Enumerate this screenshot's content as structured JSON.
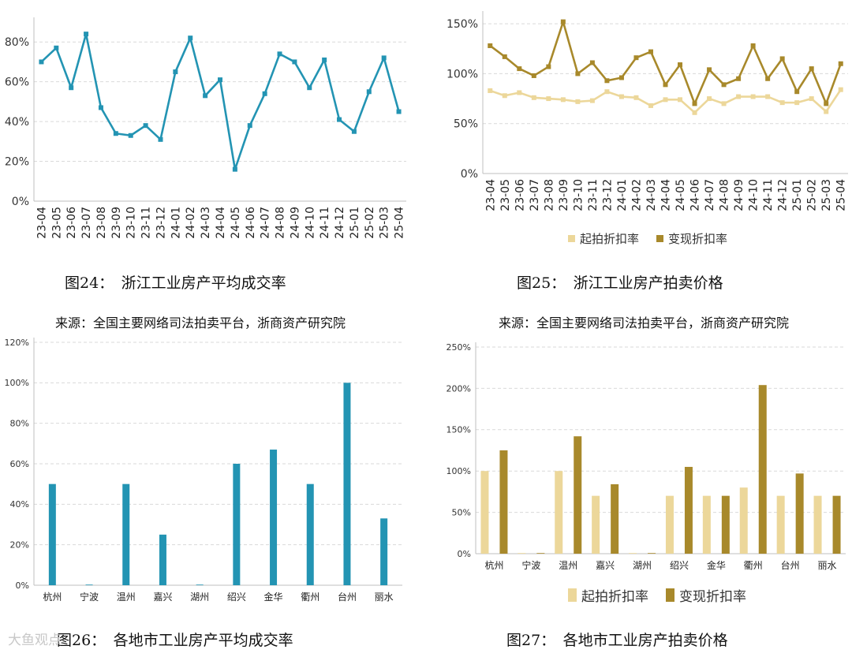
{
  "colors": {
    "teal": "#2394b3",
    "light_gold": "#ecd79a",
    "dark_gold": "#a8892b",
    "grid": "#d9d9d9"
  },
  "captions": {
    "fig24": "图24：　浙江工业房产平均成交率",
    "fig25": "图25：　浙江工业房产拍卖价格",
    "fig26": "图26：　各地市工业房产平均成交率",
    "fig27": "图27：　各地市工业房产拍卖价格",
    "source_left": "来源：全国主要网络司法拍卖平台，浙商资产研究院",
    "source_right": "来源：全国主要网络司法拍卖平台，浙商资产研究院"
  },
  "watermark": "大鱼观点",
  "chart_data": [
    {
      "id": "fig24",
      "type": "line",
      "categories": [
        "23-04",
        "23-05",
        "23-06",
        "23-07",
        "23-08",
        "23-09",
        "23-10",
        "23-11",
        "23-12",
        "24-01",
        "24-02",
        "24-03",
        "24-04",
        "24-05",
        "24-06",
        "24-07",
        "24-08",
        "24-09",
        "24-10",
        "24-11",
        "24-12",
        "25-01",
        "25-02",
        "25-03",
        "25-04"
      ],
      "series": [
        {
          "values": [
            70,
            77,
            57,
            84,
            47,
            34,
            33,
            38,
            31,
            65,
            82,
            53,
            61,
            16,
            38,
            54,
            74,
            70,
            57,
            71,
            41,
            35,
            55,
            72,
            45
          ],
          "color": "#2394b3"
        }
      ],
      "yticks": [
        "0%",
        "20%",
        "40%",
        "60%",
        "80%"
      ],
      "ylim": [
        0,
        90
      ],
      "grid": true
    },
    {
      "id": "fig25",
      "type": "line",
      "categories": [
        "23-04",
        "23-05",
        "23-06",
        "23-07",
        "23-08",
        "23-09",
        "23-10",
        "23-11",
        "23-12",
        "24-01",
        "24-02",
        "24-03",
        "24-04",
        "24-05",
        "24-06",
        "24-07",
        "24-08",
        "24-09",
        "24-10",
        "24-11",
        "24-12",
        "25-01",
        "25-02",
        "25-03",
        "25-04"
      ],
      "series": [
        {
          "name": "起拍折扣率",
          "values": [
            83,
            78,
            81,
            76,
            75,
            74,
            72,
            73,
            82,
            77,
            76,
            68,
            74,
            74,
            61,
            75,
            70,
            77,
            77,
            77,
            71,
            71,
            75,
            62,
            84
          ],
          "color": "#ecd79a"
        },
        {
          "name": "变现折扣率",
          "values": [
            128,
            117,
            105,
            98,
            107,
            152,
            100,
            111,
            93,
            96,
            116,
            122,
            89,
            109,
            70,
            104,
            89,
            95,
            128,
            95,
            115,
            82,
            105,
            70,
            110
          ],
          "color": "#a8892b"
        }
      ],
      "yticks": [
        "0%",
        "50%",
        "100%",
        "150%"
      ],
      "ylim": [
        0,
        158
      ],
      "grid": true,
      "legend": "bottom"
    },
    {
      "id": "fig26",
      "type": "bar",
      "categories": [
        "杭州",
        "宁波",
        "温州",
        "嘉兴",
        "湖州",
        "绍兴",
        "金华",
        "衢州",
        "台州",
        "丽水"
      ],
      "series": [
        {
          "values": [
            50,
            0,
            50,
            25,
            0,
            60,
            67,
            50,
            100,
            33
          ],
          "color": "#2394b3"
        }
      ],
      "yticks": [
        "0%",
        "20%",
        "40%",
        "60%",
        "80%",
        "100%",
        "120%"
      ],
      "ylim": [
        0,
        120
      ],
      "grid": true
    },
    {
      "id": "fig27",
      "type": "bar",
      "categories": [
        "杭州",
        "宁波",
        "温州",
        "嘉兴",
        "湖州",
        "绍兴",
        "金华",
        "衢州",
        "台州",
        "丽水"
      ],
      "series": [
        {
          "name": "起拍折扣率",
          "values": [
            100,
            0,
            100,
            70,
            0,
            70,
            70,
            80,
            70,
            70
          ],
          "color": "#ecd79a"
        },
        {
          "name": "变现折扣率",
          "values": [
            125,
            0,
            142,
            84,
            0,
            105,
            70,
            204,
            97,
            70
          ],
          "color": "#a8892b"
        }
      ],
      "yticks": [
        "0%",
        "50%",
        "100%",
        "150%",
        "200%",
        "250%"
      ],
      "ylim": [
        0,
        250
      ],
      "grid": true,
      "legend": "bottom"
    }
  ]
}
